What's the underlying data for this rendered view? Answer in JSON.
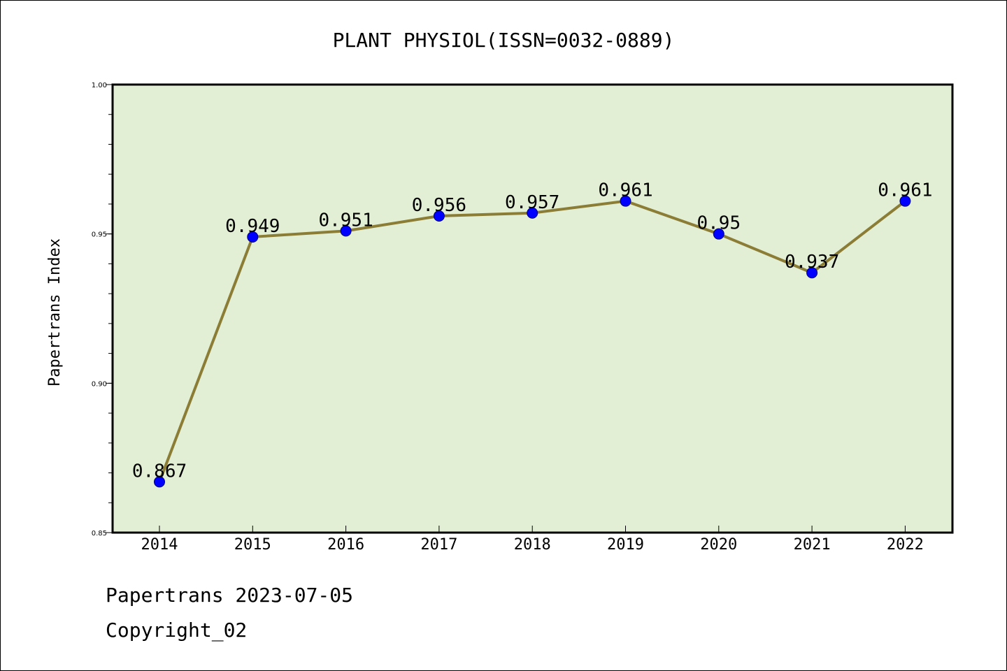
{
  "chart_data": {
    "type": "line",
    "title": "PLANT PHYSIOL(ISSN=0032-0889)",
    "xlabel": "",
    "ylabel": "Papertrans Index",
    "categories": [
      "2014",
      "2015",
      "2016",
      "2017",
      "2018",
      "2019",
      "2020",
      "2021",
      "2022"
    ],
    "series": [
      {
        "name": "Papertrans Index",
        "values": [
          0.867,
          0.949,
          0.951,
          0.956,
          0.957,
          0.961,
          0.95,
          0.937,
          0.961
        ],
        "labels": [
          "0.867",
          "0.949",
          "0.951",
          "0.956",
          "0.957",
          "0.961",
          "0.95",
          "0.937",
          "0.961"
        ]
      }
    ],
    "ylim": [
      0.85,
      1.0
    ],
    "yticks": [
      0.85,
      0.9,
      0.95,
      1.0
    ],
    "ytick_labels": [
      "0.85",
      "0.90",
      "0.95",
      "1.00"
    ],
    "grid": false,
    "colors": {
      "plot_bg": "#e2efd5",
      "line": "#8b7d35",
      "marker": "#0000ff",
      "axis": "#000000"
    }
  },
  "footer": {
    "line1": "Papertrans 2023-07-05",
    "line2": "Copyright_02"
  }
}
